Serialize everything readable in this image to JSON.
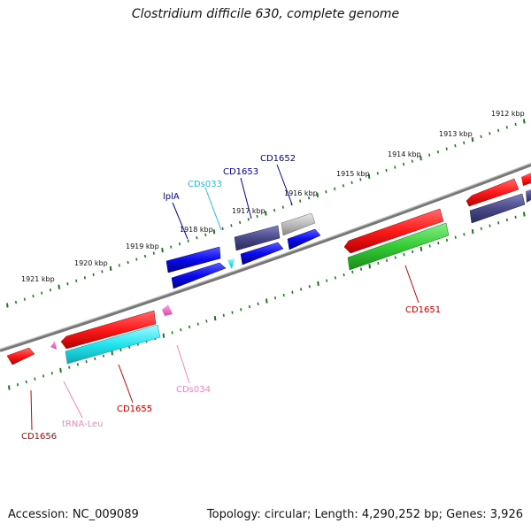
{
  "title": "Clostridium difficile 630, complete genome",
  "accession": "Accession: NC_009089",
  "topology": "Topology: circular; Length: 4,290,252 bp; Genes: 3,926",
  "colors": {
    "backbone": "#777777",
    "tick": "#1a7a1a",
    "cds_red": "#ff1a1a",
    "cds_blue": "#0a0aee",
    "cds_navy": "#4a4a8a",
    "cds_gray": "#bbbbbb",
    "cds_green": "#33cc33",
    "cds_cyan": "#22e6f0",
    "misc_pink": "#ff66cc",
    "label_red": "#cc0000",
    "label_blue": "#0000aa",
    "label_cyan": "#33bbdd",
    "label_pink": "#ee88bb"
  },
  "scale_labels": [
    "1921 kbp",
    "1920 kbp",
    "1919 kbp",
    "1918 kbp",
    "1917 kbp",
    "1916 kbp",
    "1915 kbp",
    "1914 kbp",
    "1913 kbp",
    "1912 kbp"
  ],
  "features": [
    {
      "name": "CD1656",
      "label_color": "label_red"
    },
    {
      "name": "tRNA-Leu",
      "label_color": "label_pink"
    },
    {
      "name": "CD1655",
      "label_color": "label_red"
    },
    {
      "name": "CDs034",
      "label_color": "label_pink"
    },
    {
      "name": "lplA",
      "label_color": "label_blue"
    },
    {
      "name": "CDs033",
      "label_color": "label_cyan"
    },
    {
      "name": "CD1653",
      "label_color": "label_blue"
    },
    {
      "name": "CD1652",
      "label_color": "label_blue"
    },
    {
      "name": "CD1651",
      "label_color": "label_red"
    }
  ]
}
